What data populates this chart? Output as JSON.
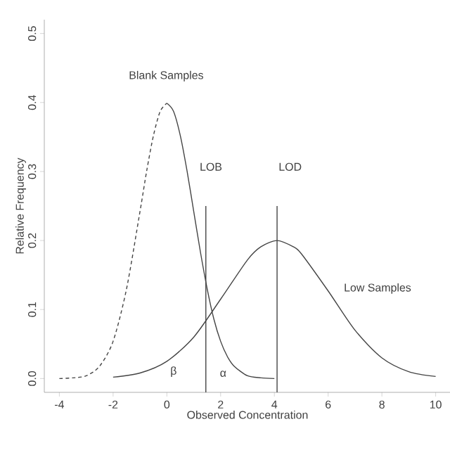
{
  "chart_data": {
    "type": "line",
    "xlabel": "Observed Concentration",
    "ylabel": "Relative Frequency",
    "xlim": [
      -4.56,
      10.56
    ],
    "ylim": [
      -0.02,
      0.52
    ],
    "xticks": [
      -4,
      -2,
      0,
      2,
      4,
      6,
      8,
      10
    ],
    "yticks": [
      {
        "value": 0,
        "label": "0.0"
      },
      0.1,
      0.2,
      0.3,
      0.4,
      0.5
    ],
    "grid": false,
    "series": [
      {
        "color": "#444444",
        "line_style": "dashed",
        "x": [
          -4,
          -3.5,
          -3,
          -2.5,
          -2,
          -1.5,
          -1,
          -0.75,
          -0.5,
          -0.25,
          0
        ],
        "values": [
          0.0,
          0.001,
          0.004,
          0.018,
          0.054,
          0.13,
          0.242,
          0.301,
          0.352,
          0.387,
          0.399
        ]
      },
      {
        "color": "#444444",
        "line_style": "solid",
        "x": [
          0,
          0.25,
          0.5,
          0.75,
          1,
          1.25,
          1.5,
          1.75,
          2,
          2.25,
          2.5,
          3,
          3.5,
          4
        ],
        "values": [
          0.399,
          0.387,
          0.352,
          0.301,
          0.242,
          0.183,
          0.13,
          0.086,
          0.054,
          0.032,
          0.018,
          0.004,
          0.001,
          0.0
        ]
      },
      {
        "color": "#444444",
        "line_style": "solid",
        "x": [
          -2,
          -1,
          0,
          1,
          2,
          3,
          3.5,
          4.1,
          4.7,
          5,
          6,
          7,
          8,
          9,
          10
        ],
        "values": [
          0.002,
          0.008,
          0.025,
          0.06,
          0.115,
          0.172,
          0.191,
          0.2,
          0.191,
          0.181,
          0.127,
          0.07,
          0.03,
          0.01,
          0.003
        ]
      },
      {
        "color": "#444444",
        "line_style": "solid",
        "x": [
          1.45,
          1.45
        ],
        "values": [
          -0.02,
          0.25
        ]
      },
      {
        "color": "#444444",
        "line_style": "solid",
        "x": [
          4.1,
          4.1
        ],
        "values": [
          -0.02,
          0.25
        ]
      }
    ],
    "annotations": [
      "Blank Samples",
      "Low Samples",
      "LOB",
      "LOD",
      "β",
      "α"
    ]
  }
}
